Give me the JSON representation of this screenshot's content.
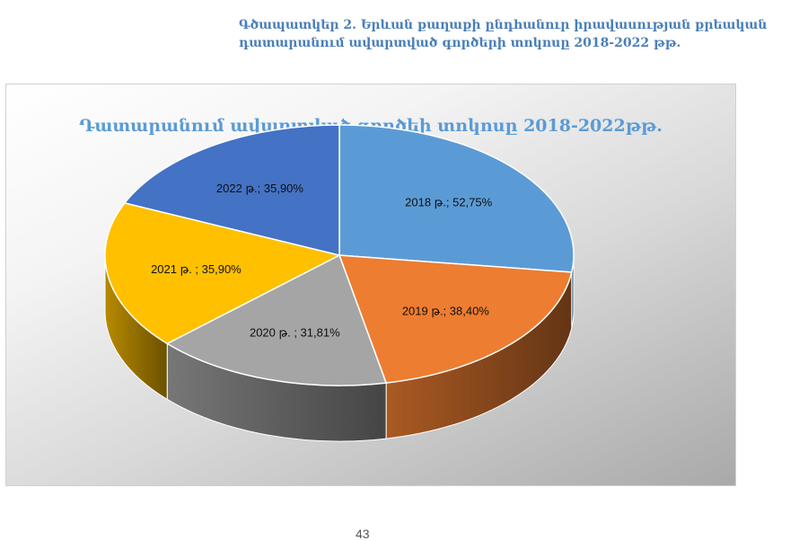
{
  "figure_caption_line1": "Գծապատկեր 2. Երևան քաղաքի ընդհանուր իրավասության քրեական",
  "figure_caption_line2": "դատարանում ավարտված գործերի տոկոսը 2018-2022 թթ.",
  "page_number": "43",
  "chart_data": {
    "type": "pie",
    "title": "Դատարանում ավարտված գործեի տոկոսը 2018-2022թթ.",
    "slices": [
      {
        "category": "2018 թ.",
        "value": 52.75,
        "label": "2018 թ.; 52,75%",
        "color": "#5b9bd5"
      },
      {
        "category": "2019 թ.",
        "value": 38.4,
        "label": "2019 թ.; 38,40%",
        "color": "#ed7d31"
      },
      {
        "category": "2020 թ.",
        "value": 31.81,
        "label": "2020 թ. ; 31,81%",
        "color": "#a5a5a5"
      },
      {
        "category": "2021 թ.",
        "value": 35.9,
        "label": "2021 թ. ; 35,90%",
        "color": "#ffc000"
      },
      {
        "category": "2022 թ.",
        "value": 35.9,
        "label": "2022 թ.; 35,90%",
        "color": "#4472c4"
      }
    ],
    "style": "3d-pie",
    "legend": "none"
  }
}
